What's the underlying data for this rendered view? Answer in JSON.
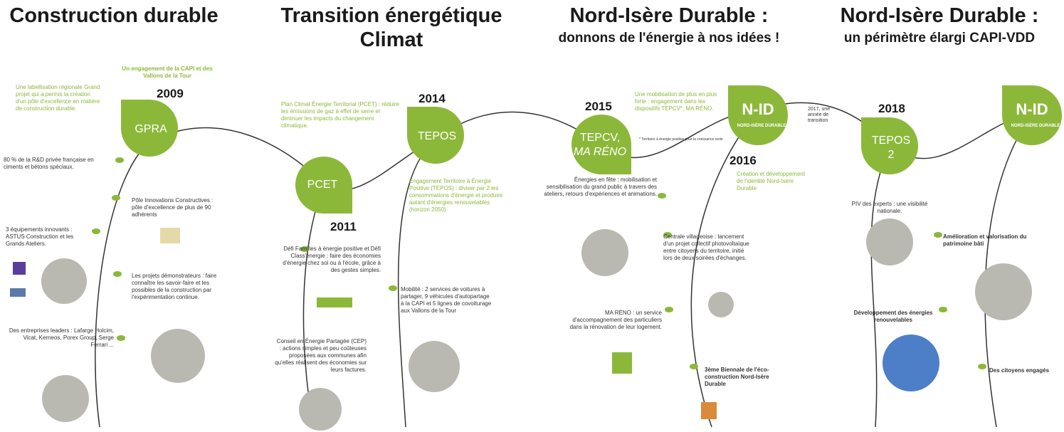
{
  "sections": [
    {
      "title": "Construction durable"
    },
    {
      "title": "Transition énergétique",
      "title_line2": "Climat"
    },
    {
      "title": "Nord-Isère Durable :",
      "subtitle": "donnons de l'énergie à nos idées !"
    },
    {
      "title": "Nord-Isère Durable :",
      "subtitle": "un périmètre élargi CAPI-VDD"
    }
  ],
  "nodes": [
    {
      "label": "GPRA",
      "year": "2009"
    },
    {
      "label": "PCET",
      "year": "2011"
    },
    {
      "label": "TEPOS",
      "year": "2014"
    },
    {
      "label": "TEPCV,",
      "label2": "MA RÉNO",
      "year": "2015"
    },
    {
      "label": "N-ID",
      "sublabel": "NORD-ISÈRE DURABLE",
      "year": "2016"
    },
    {
      "label": "TEPOS",
      "label2": "2",
      "year": "2018"
    },
    {
      "label": "N-ID",
      "sublabel": "NORD-ISÈRE DURABLE"
    }
  ],
  "notes": [
    "Un engagement de la CAPI et des Vallons de la Tour",
    "Une labellisation régionale Grand projet qui a permis la création d'un pôle d'excellence en matière de construction durable.",
    "80 % de la R&D privée française en ciments et bétons spéciaux.",
    "Pôle Innovations Constructives : pôle d'excellence de plus de 90 adhérents",
    "3 équipements innovants : ASTUS Construction et les Grands Ateliers.",
    "Les projets démonstrateurs : faire connaître les savoir-faire et les possibles de la construction par l'expérimentation continue.",
    "Des entreprises leaders : Lafarge Holcim, Vicat, Kerneos, Porex Group, Serge Ferrari ...",
    "Plan Climat Énergie Territorial (PCET) : réduire les émissions de gaz à effet de serre et diminuer les impacts du changement climatique.",
    "Défi Familles à énergie positive et Défi Class'énergie : faire des économies d'énergie chez soi ou à l'école, grâce à des gestes simples.",
    "Conseil en Énergie Partagée (CEP) : actions simples et peu coûteuses proposées aux communes afin qu'elles réalisent des économies sur leurs factures.",
    "Engagement Territoire à Énergie Positive (TEPOS) : diviser par 2 les consommations d'énergie et produire autant d'énergies renouvelables (horizon 2050)",
    "Mobilité : 2 services de voitures à partager, 9 véhicules d'autopartage à la CAPI et 5 lignes de covoiturage aux Vallons de la Tour",
    "Une mobilisation de plus en plus forte : engagement dans les dispositifs TEPCV*, MA RÉNO.",
    "* Territoire à énergie positive pour la croissance verte",
    "Énergies en fête : mobilisation et sensibilisation du grand public à travers des ateliers, retours d'expériences et animations.",
    "Création et développement de l'identité Nord-Isère Durable",
    "Centrale villageoise : lancement d'un projet collectif photovoltaïque entre citoyens du territoire, initié lors de deux soirées d'échanges.",
    "MA RÉNO : un service d'accompagnement des particuliers dans la rénovation de leur logement.",
    "3ème Biennale de l'éco-construction Nord-Isère Durable",
    "2017, une année de transition",
    "PIV des experts : une visibilité nationale.",
    "Amélioration et valorisation du patrimoine bâti",
    "Développement des énergies renouvelables",
    "Des citoyens engagés"
  ]
}
